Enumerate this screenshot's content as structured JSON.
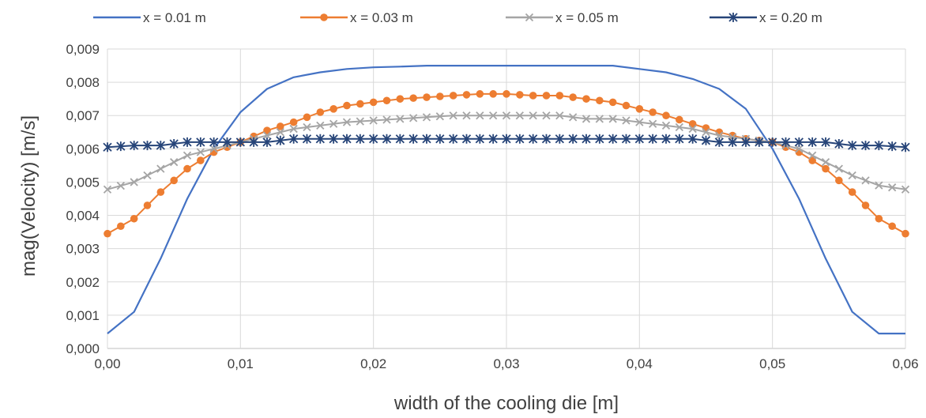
{
  "chart_data": {
    "type": "line",
    "xlabel": "width of the cooling die [m]",
    "ylabel": "mag(Velocity) [m/s]",
    "xlim": [
      0,
      0.06
    ],
    "ylim": [
      0,
      0.009
    ],
    "x_ticks": [
      "0,00",
      "0,01",
      "0,02",
      "0,03",
      "0,04",
      "0,05",
      "0,06"
    ],
    "y_ticks": [
      "0,000",
      "0,001",
      "0,002",
      "0,003",
      "0,004",
      "0,005",
      "0,006",
      "0,007",
      "0,008",
      "0,009"
    ],
    "grid": true,
    "legend_position": "top",
    "series": [
      {
        "name": "x = 0.01 m",
        "color": "#4472C4",
        "marker": "none",
        "x": [
          0.0,
          0.002,
          0.004,
          0.006,
          0.008,
          0.01,
          0.012,
          0.014,
          0.016,
          0.018,
          0.02,
          0.022,
          0.024,
          0.026,
          0.028,
          0.03,
          0.032,
          0.034,
          0.036,
          0.038,
          0.04,
          0.042,
          0.044,
          0.046,
          0.048,
          0.05,
          0.052,
          0.054,
          0.056,
          0.058,
          0.06
        ],
        "y": [
          0.00045,
          0.0011,
          0.0027,
          0.0045,
          0.006,
          0.0071,
          0.0078,
          0.00815,
          0.0083,
          0.0084,
          0.00845,
          0.00847,
          0.0085,
          0.0085,
          0.0085,
          0.0085,
          0.0085,
          0.0085,
          0.0085,
          0.0085,
          0.0084,
          0.0083,
          0.0081,
          0.0078,
          0.0072,
          0.006,
          0.0045,
          0.0027,
          0.0011,
          0.00045,
          0.00045
        ]
      },
      {
        "name": "x = 0.03 m",
        "color": "#ED7D31",
        "marker": "circle",
        "x": [
          0.0,
          0.002,
          0.004,
          0.006,
          0.008,
          0.01,
          0.012,
          0.014,
          0.016,
          0.018,
          0.02,
          0.022,
          0.024,
          0.026,
          0.028,
          0.03,
          0.032,
          0.034,
          0.036,
          0.038,
          0.04,
          0.042,
          0.044,
          0.046,
          0.048,
          0.05,
          0.052,
          0.054,
          0.056,
          0.058,
          0.06
        ],
        "y": [
          0.00345,
          0.0039,
          0.0047,
          0.0054,
          0.0059,
          0.0062,
          0.00655,
          0.0068,
          0.0071,
          0.0073,
          0.0074,
          0.0075,
          0.00755,
          0.0076,
          0.00765,
          0.00765,
          0.0076,
          0.0076,
          0.0075,
          0.0074,
          0.0072,
          0.007,
          0.00675,
          0.0065,
          0.0063,
          0.0062,
          0.0059,
          0.0054,
          0.0047,
          0.0039,
          0.00345
        ]
      },
      {
        "name": "x = 0.05 m",
        "color": "#A5A5A5",
        "marker": "x",
        "x": [
          0.0,
          0.002,
          0.004,
          0.006,
          0.008,
          0.01,
          0.012,
          0.014,
          0.016,
          0.018,
          0.02,
          0.022,
          0.024,
          0.026,
          0.028,
          0.03,
          0.032,
          0.034,
          0.036,
          0.038,
          0.04,
          0.042,
          0.044,
          0.046,
          0.048,
          0.05,
          0.052,
          0.054,
          0.056,
          0.058,
          0.06
        ],
        "y": [
          0.00478,
          0.005,
          0.0054,
          0.0058,
          0.006,
          0.0062,
          0.0064,
          0.0066,
          0.0067,
          0.0068,
          0.00685,
          0.0069,
          0.00695,
          0.007,
          0.007,
          0.007,
          0.007,
          0.007,
          0.0069,
          0.0069,
          0.0068,
          0.0067,
          0.0066,
          0.0064,
          0.0063,
          0.0062,
          0.006,
          0.0056,
          0.0052,
          0.0049,
          0.00478
        ]
      },
      {
        "name": "x = 0.20 m",
        "color": "#264478",
        "marker": "star",
        "x": [
          0.0,
          0.002,
          0.004,
          0.006,
          0.008,
          0.01,
          0.012,
          0.014,
          0.016,
          0.018,
          0.02,
          0.022,
          0.024,
          0.026,
          0.028,
          0.03,
          0.032,
          0.034,
          0.036,
          0.038,
          0.04,
          0.042,
          0.044,
          0.046,
          0.048,
          0.05,
          0.052,
          0.054,
          0.056,
          0.058,
          0.06
        ],
        "y": [
          0.00605,
          0.0061,
          0.0061,
          0.0062,
          0.0062,
          0.0062,
          0.0062,
          0.0063,
          0.0063,
          0.0063,
          0.0063,
          0.0063,
          0.0063,
          0.0063,
          0.0063,
          0.0063,
          0.0063,
          0.0063,
          0.0063,
          0.0063,
          0.0063,
          0.0063,
          0.0063,
          0.0062,
          0.0062,
          0.0062,
          0.0062,
          0.0062,
          0.0061,
          0.0061,
          0.00605
        ]
      }
    ]
  }
}
